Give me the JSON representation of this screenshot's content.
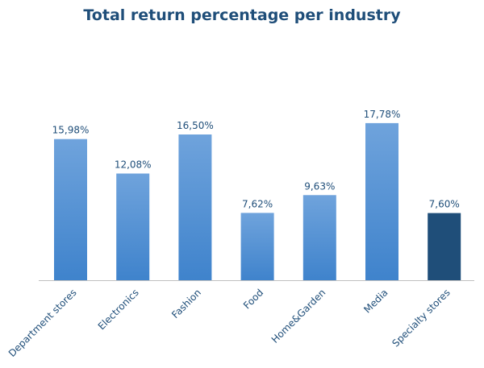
{
  "chart_data": {
    "type": "bar",
    "title": "Total return percentage per industry",
    "categories": [
      "Department stores",
      "Electronics",
      "Fashion",
      "Food",
      "Home&Garden",
      "Media",
      "Specialty stores"
    ],
    "values": [
      15.98,
      12.08,
      16.5,
      7.62,
      9.63,
      17.78,
      7.6
    ],
    "data_labels": [
      "15,98%",
      "12,08%",
      "16,50%",
      "7,62%",
      "9,63%",
      "17,78%",
      "7,60%"
    ],
    "ylim": [
      0,
      20
    ],
    "grid": false,
    "legend": "none",
    "colors": {
      "bar_top": "#6fa3dc",
      "bar_bottom": "#3f83cc",
      "highlight": "#1f4e79",
      "axis": "#bfbfbf",
      "text": "#1f4e79"
    },
    "highlight_index": 6
  }
}
